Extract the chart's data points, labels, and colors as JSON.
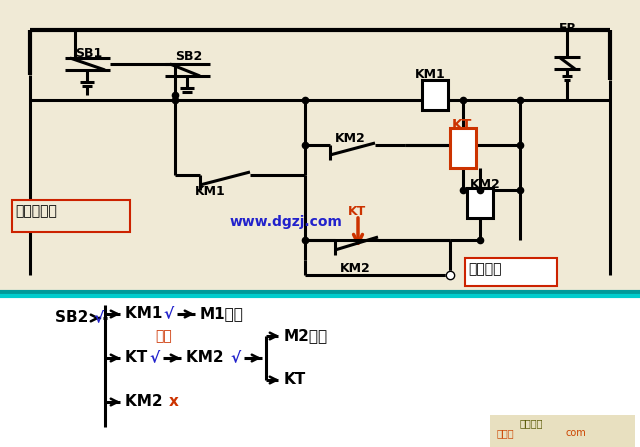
{
  "bg_color": "#f0ead6",
  "circuit_bg": "#f0ead6",
  "bottom_bg": "#ffffff",
  "divider_color1": "#00b8b8",
  "divider_color2": "#00d0d0",
  "watermark": "www.dgzj.com",
  "watermark_color": "#2222cc",
  "label_zhu": "主电路同前",
  "label_kong": "控制电路",
  "label_FR": "FR",
  "label_SB1": "SB1",
  "label_SB2": "SB2",
  "label_KM1": "KM1",
  "label_KM1b": "KM1",
  "label_KM2a": "KM2",
  "label_KM2b": "KM2",
  "label_KM2c": "KM2",
  "label_KT": "KT",
  "label_KT2": "KT",
  "orange": "#cc3300",
  "red_box": "#cc2200",
  "black": "#000000",
  "blue": "#2222cc",
  "check": "√",
  "cross": "x",
  "yan_shi": "延时",
  "M1qd": "M1起动",
  "M2qd": "M2起动",
  "KT_bot": "KT"
}
